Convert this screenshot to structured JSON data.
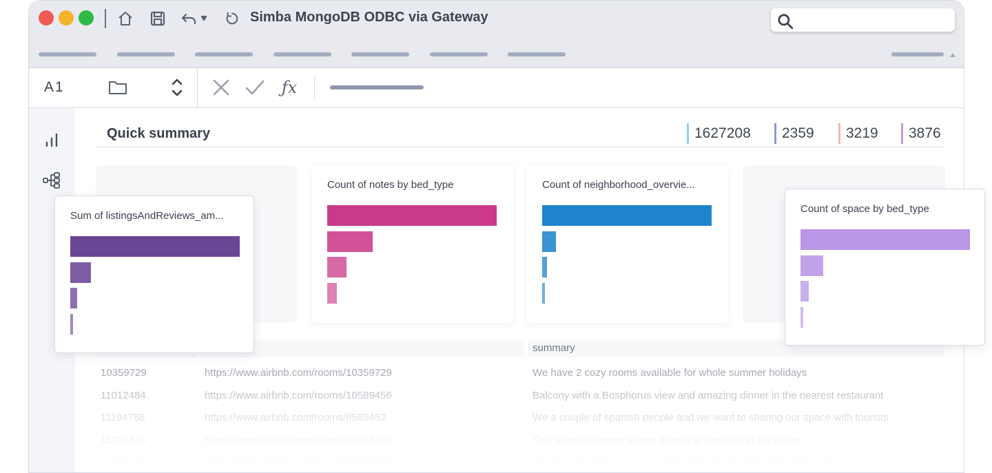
{
  "window": {
    "title": "Simba MongoDB ODBC via Gateway"
  },
  "formula_bar": {
    "cell_ref": "A1"
  },
  "summary": {
    "title": "Quick summary",
    "kpis": [
      {
        "value": "1627208",
        "color": "#8fd0f2"
      },
      {
        "value": "2359",
        "color": "#8e96d4"
      },
      {
        "value": "3219",
        "color": "#f2b8a6"
      },
      {
        "value": "3876",
        "color": "#c69ad8"
      }
    ]
  },
  "charts": [
    {
      "title": "Sum of listingsAndReviews_am...",
      "color": "#6b4596",
      "bar_fractions": [
        1.0,
        0.12,
        0.04,
        0.016
      ]
    },
    {
      "title": "Count of notes by bed_type",
      "color": "#cb3a88",
      "bar_fractions": [
        1.0,
        0.27,
        0.115,
        0.055
      ]
    },
    {
      "title": "Count of neighborhood_overvie...",
      "color": "#1f84cc",
      "bar_fractions": [
        1.0,
        0.08,
        0.03,
        0.016
      ]
    },
    {
      "title": "Count of space by bed_type",
      "color": "#b996e6",
      "bar_fractions": [
        1.0,
        0.135,
        0.05,
        0.018
      ]
    }
  ],
  "table": {
    "header": {
      "col3": "summary"
    },
    "rows": [
      {
        "id": "10359729",
        "url": "https://www.airbnb.com/rooms/10359729",
        "summary": "We have 2 cozy rooms available for whole summer holidays"
      },
      {
        "id": "11012484",
        "url": "https://www.airbnb.com/rooms/10589456",
        "summary": "Balcony with a Bosphorus view and amazing dinner in the nearest restaurant"
      },
      {
        "id": "11194788",
        "url": "https://www.airbnb.com/rooms/8569452",
        "summary": "We a couple of spanish people and we want to sharing our space with tourists"
      },
      {
        "id": "11786845",
        "url": "https://www.airbnb.com/rooms/12036479",
        "summary": "This unique concept allows guests to luxuriate in the space"
      },
      {
        "id": "11788112",
        "url": "https://www.airbnb.com/rooms/89567841",
        "summary": "We want to share our space with other people from may 6 to june6"
      }
    ]
  }
}
